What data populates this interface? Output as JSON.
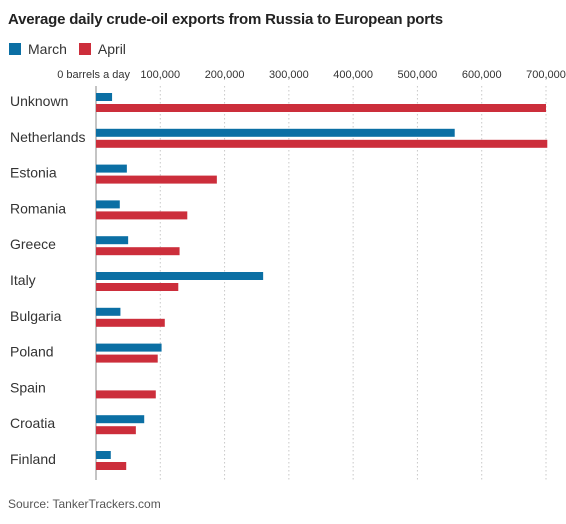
{
  "title": "Average daily crude-oil exports from Russia to European ports",
  "source": "Source: TankerTrackers.com",
  "colors": {
    "march": "#0b6fa4",
    "april": "#cc2e3b",
    "grid": "#c8c8c8",
    "axis": "#888888"
  },
  "chart_data": {
    "type": "bar",
    "orientation": "horizontal",
    "title": "Average daily crude-oil exports from Russia to European ports",
    "xlabel": "",
    "ylabel": "",
    "xlim": [
      0,
      700000
    ],
    "grid": true,
    "legend_position": "top-left",
    "x_ticks": [
      0,
      100000,
      200000,
      300000,
      400000,
      500000,
      600000,
      700000
    ],
    "x_tick_labels": [
      "0 barrels a day",
      "100,000",
      "200,000",
      "300,000",
      "400,000",
      "500,000",
      "600,000",
      "700,000"
    ],
    "categories": [
      "Unknown",
      "Netherlands",
      "Estonia",
      "Romania",
      "Greece",
      "Italy",
      "Bulgaria",
      "Poland",
      "Spain",
      "Croatia",
      "Finland"
    ],
    "series": [
      {
        "name": "March",
        "color": "#0b6fa4",
        "values": [
          25000,
          558000,
          48000,
          37000,
          50000,
          260000,
          38000,
          102000,
          0,
          75000,
          23000
        ]
      },
      {
        "name": "April",
        "color": "#cc2e3b",
        "values": [
          700000,
          702000,
          188000,
          142000,
          130000,
          128000,
          107000,
          96000,
          93000,
          62000,
          47000
        ]
      }
    ]
  }
}
